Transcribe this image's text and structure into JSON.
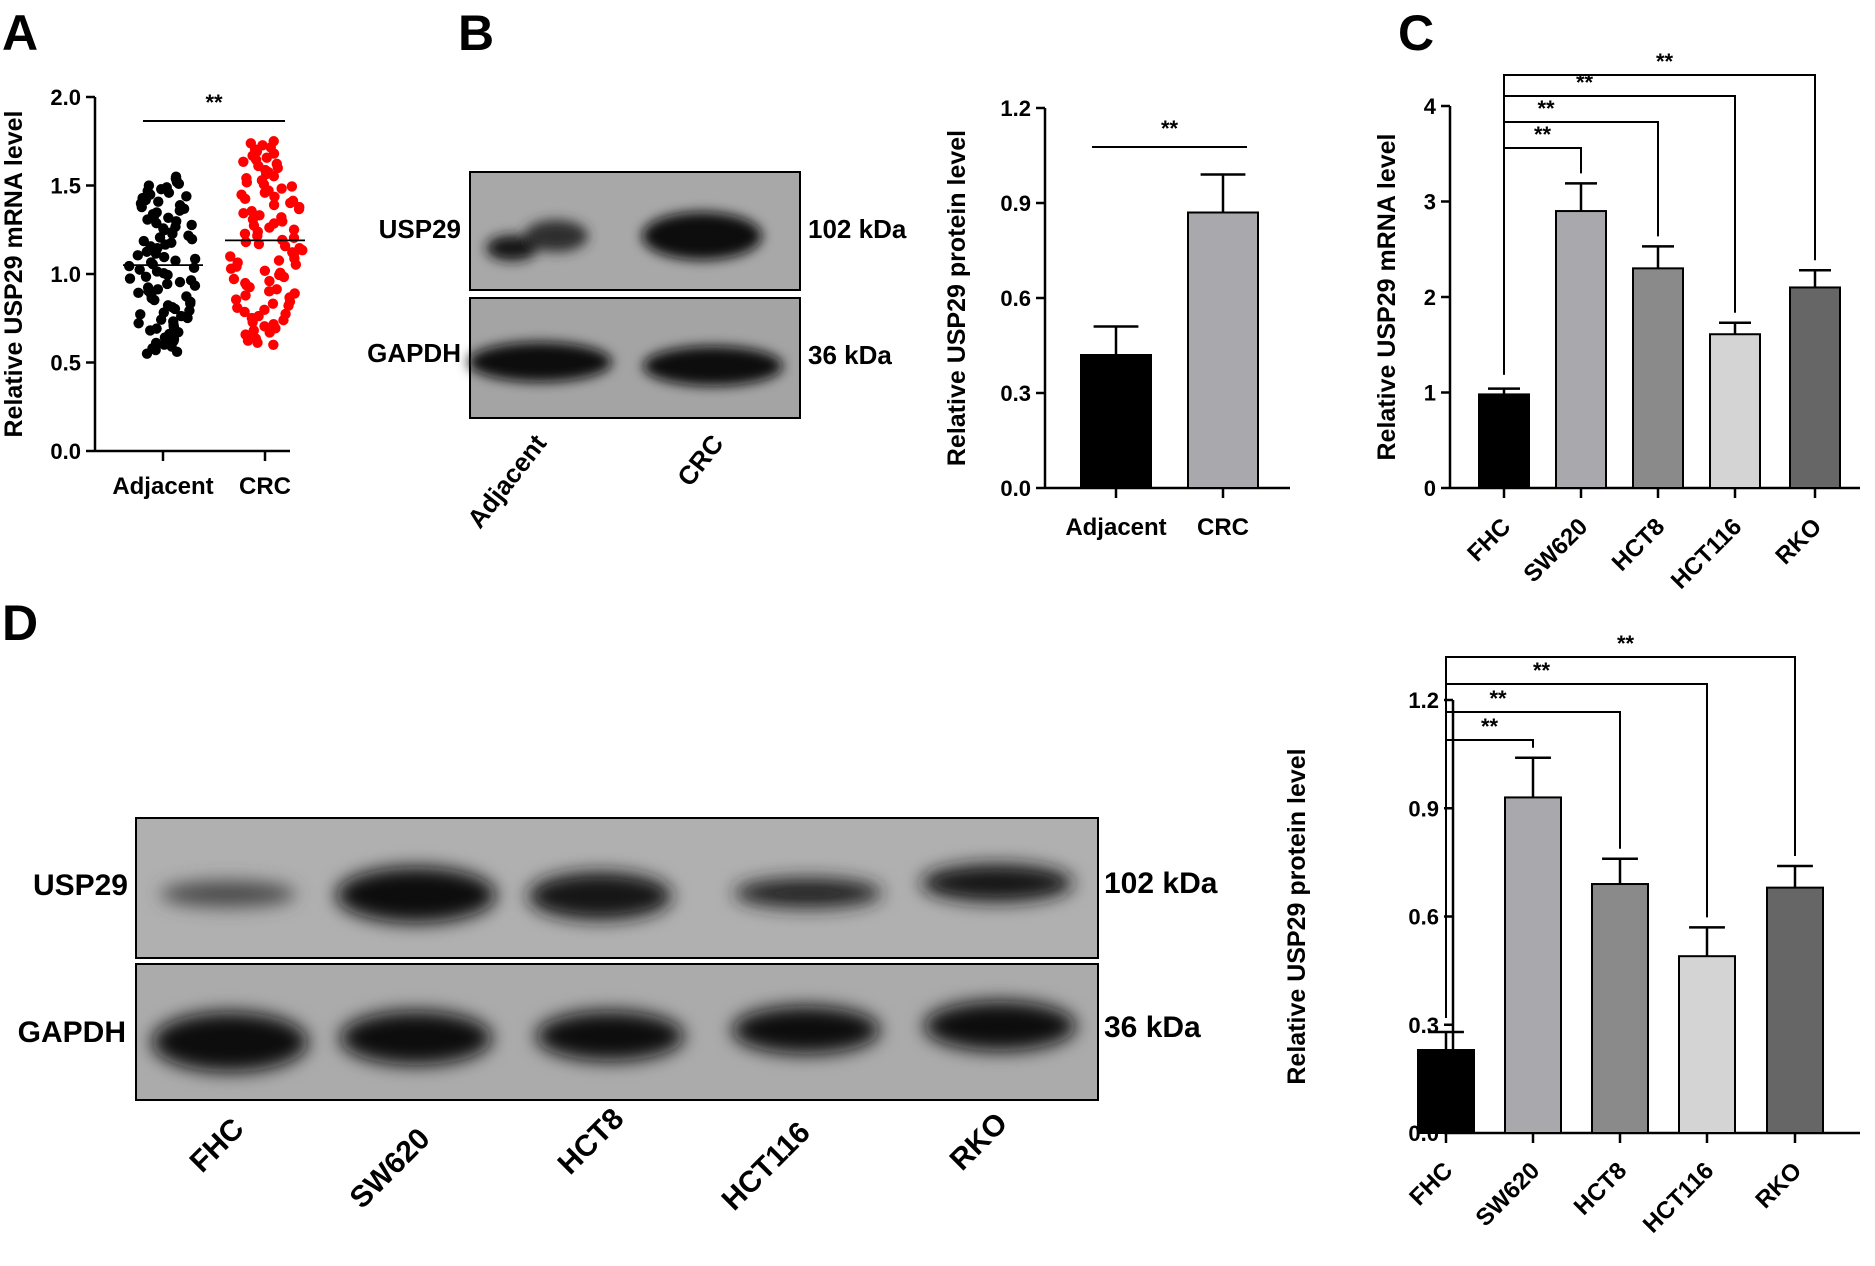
{
  "panels": {
    "A": {
      "label": "A"
    },
    "B": {
      "label": "B",
      "blot": {
        "rows": [
          "USP29",
          "GAPDH"
        ],
        "sizes": [
          "102 kDa",
          "36 kDa"
        ],
        "lanes": [
          "Adjacent",
          "CRC"
        ]
      }
    },
    "C": {
      "label": "C"
    },
    "D": {
      "label": "D",
      "blot": {
        "rows": [
          "USP29",
          "GAPDH"
        ],
        "sizes": [
          "102 kDa",
          "36 kDa"
        ],
        "lanes": [
          "FHC",
          "SW620",
          "HCT8",
          "HCT116",
          "RKO"
        ]
      }
    }
  },
  "colors": {
    "adjacent_dots": "#000000",
    "crc_dots": "#ff0000",
    "black_bar": "#000000",
    "light_gray_bar": "#a9a9ad",
    "mid_gray_bar": "#8a8a8a",
    "pale_gray_bar": "#d4d4d4",
    "dark_gray_bar": "#666666"
  },
  "chart_data": [
    {
      "id": "A",
      "type": "scatter",
      "categories": [
        "Adjacent",
        "CRC"
      ],
      "ylabel": "Relative USP29 mRNA level",
      "ylim": [
        0.0,
        2.0
      ],
      "yticks": [
        "0.0",
        "0.5",
        "1.0",
        "1.5",
        "2.0"
      ],
      "series": [
        {
          "group": "Adjacent",
          "mean": 1.05,
          "min": 0.55,
          "max": 1.55,
          "n": 100,
          "color": "#000000"
        },
        {
          "group": "CRC",
          "mean": 1.19,
          "min": 0.6,
          "max": 1.75,
          "n": 100,
          "color": "#ff0000"
        }
      ],
      "annotations": [
        {
          "from": "Adjacent",
          "to": "CRC",
          "text": "**"
        }
      ]
    },
    {
      "id": "B",
      "type": "bar",
      "categories": [
        "Adjacent",
        "CRC"
      ],
      "values": [
        0.42,
        0.87
      ],
      "errors": [
        0.09,
        0.12
      ],
      "colors": [
        "#000000",
        "#a9a9ad"
      ],
      "ylabel": "Relative USP29 protein level",
      "ylim": [
        0.0,
        1.2
      ],
      "yticks": [
        "0.0",
        "0.3",
        "0.6",
        "0.9",
        "1.2"
      ],
      "annotations": [
        {
          "from": "Adjacent",
          "to": "CRC",
          "text": "**"
        }
      ]
    },
    {
      "id": "C",
      "type": "bar",
      "categories": [
        "FHC",
        "SW620",
        "HCT8",
        "HCT116",
        "RKO"
      ],
      "values": [
        0.98,
        2.9,
        2.3,
        1.61,
        2.1
      ],
      "errors": [
        0.06,
        0.29,
        0.23,
        0.12,
        0.18
      ],
      "colors": [
        "#000000",
        "#a9a9ad",
        "#8a8a8a",
        "#d4d4d4",
        "#666666"
      ],
      "ylabel": "Relative USP29 mRNA level",
      "ylim": [
        0,
        4
      ],
      "yticks": [
        "0",
        "1",
        "2",
        "3",
        "4"
      ],
      "annotations": [
        {
          "from": "FHC",
          "to": "SW620",
          "text": "**"
        },
        {
          "from": "FHC",
          "to": "HCT8",
          "text": "**"
        },
        {
          "from": "FHC",
          "to": "HCT116",
          "text": "**"
        },
        {
          "from": "FHC",
          "to": "RKO",
          "text": "**"
        }
      ]
    },
    {
      "id": "D",
      "type": "bar",
      "categories": [
        "FHC",
        "SW620",
        "HCT8",
        "HCT116",
        "RKO"
      ],
      "values": [
        0.23,
        0.93,
        0.69,
        0.49,
        0.68
      ],
      "errors": [
        0.05,
        0.11,
        0.07,
        0.08,
        0.06
      ],
      "colors": [
        "#000000",
        "#a9a9ad",
        "#8a8a8a",
        "#d4d4d4",
        "#666666"
      ],
      "ylabel": "Relative USP29 protein level",
      "ylim": [
        0.0,
        1.2
      ],
      "yticks": [
        "0.0",
        "0.3",
        "0.6",
        "0.9",
        "1.2"
      ],
      "annotations": [
        {
          "from": "FHC",
          "to": "SW620",
          "text": "**"
        },
        {
          "from": "FHC",
          "to": "HCT8",
          "text": "**"
        },
        {
          "from": "FHC",
          "to": "HCT116",
          "text": "**"
        },
        {
          "from": "FHC",
          "to": "RKO",
          "text": "**"
        }
      ]
    }
  ]
}
